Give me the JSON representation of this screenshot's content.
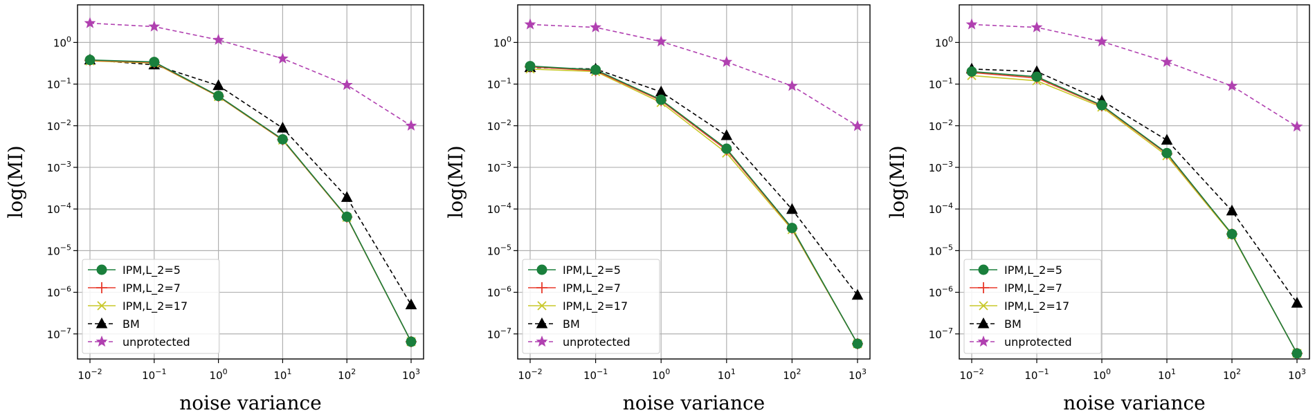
{
  "chart_data": [
    {
      "type": "line",
      "xlabel": "noise variance",
      "ylabel": "log(MI)",
      "xscale": "log",
      "yscale": "log",
      "x": [
        0.01,
        0.1,
        1,
        10,
        100,
        1000
      ],
      "xticks": [
        "10^-2",
        "10^-1",
        "10^0",
        "10^1",
        "10^2",
        "10^3"
      ],
      "yticks": [
        "10^-7",
        "10^-6",
        "10^-5",
        "10^-4",
        "10^-3",
        "10^-2",
        "10^-1",
        "10^0"
      ],
      "ylim": [
        2.5e-08,
        8
      ],
      "grid": true,
      "legend": "lower-left",
      "series": [
        {
          "name": "IPM,L_2=5",
          "color": "#1a7f3c",
          "marker": "circle",
          "values": [
            0.38,
            0.34,
            0.052,
            0.0047,
            6.5e-05,
            6.5e-08
          ]
        },
        {
          "name": "IPM,L_2=7",
          "color": "#e8382a",
          "marker": "plus",
          "values": [
            0.37,
            0.33,
            0.051,
            0.0046,
            6.4e-05,
            6.5e-08
          ]
        },
        {
          "name": "IPM,L_2=17",
          "color": "#c8c82a",
          "marker": "x",
          "values": [
            0.36,
            0.32,
            0.05,
            0.0045,
            6.3e-05,
            6.5e-08
          ]
        },
        {
          "name": "BM",
          "color": "#000000",
          "marker": "triangle",
          "values": [
            0.38,
            0.29,
            0.092,
            0.0088,
            0.00019,
            5e-07
          ]
        },
        {
          "name": "unprotected",
          "color": "#b040b0",
          "marker": "star",
          "values": [
            2.9,
            2.4,
            1.15,
            0.41,
            0.095,
            0.01
          ]
        }
      ]
    },
    {
      "type": "line",
      "xlabel": "noise variance",
      "ylabel": "log(MI)",
      "xscale": "log",
      "yscale": "log",
      "x": [
        0.01,
        0.1,
        1,
        10,
        100,
        1000
      ],
      "xticks": [
        "10^-2",
        "10^-1",
        "10^0",
        "10^1",
        "10^2",
        "10^3"
      ],
      "yticks": [
        "10^-7",
        "10^-6",
        "10^-5",
        "10^-4",
        "10^-3",
        "10^-2",
        "10^-1",
        "10^0"
      ],
      "ylim": [
        2.5e-08,
        8
      ],
      "grid": true,
      "legend": "lower-left",
      "series": [
        {
          "name": "IPM,L_2=5",
          "color": "#1a7f3c",
          "marker": "circle",
          "values": [
            0.27,
            0.22,
            0.042,
            0.0028,
            3.5e-05,
            5.8e-08
          ]
        },
        {
          "name": "IPM,L_2=7",
          "color": "#e8382a",
          "marker": "plus",
          "values": [
            0.26,
            0.21,
            0.04,
            0.0026,
            3.4e-05,
            5.8e-08
          ]
        },
        {
          "name": "IPM,L_2=17",
          "color": "#c8c82a",
          "marker": "x",
          "values": [
            0.23,
            0.2,
            0.036,
            0.0022,
            3.2e-05,
            5.8e-08
          ]
        },
        {
          "name": "BM",
          "color": "#000000",
          "marker": "triangle",
          "values": [
            0.25,
            0.23,
            0.065,
            0.0058,
            9.8e-05,
            8.5e-07
          ]
        },
        {
          "name": "unprotected",
          "color": "#b040b0",
          "marker": "star",
          "values": [
            2.7,
            2.3,
            1.05,
            0.34,
            0.09,
            0.0098
          ]
        }
      ]
    },
    {
      "type": "line",
      "xlabel": "noise variance",
      "ylabel": "log(MI)",
      "xscale": "log",
      "yscale": "log",
      "x": [
        0.01,
        0.1,
        1,
        10,
        100,
        1000
      ],
      "xticks": [
        "10^-2",
        "10^-1",
        "10^0",
        "10^1",
        "10^2",
        "10^3"
      ],
      "yticks": [
        "10^-7",
        "10^-6",
        "10^-5",
        "10^-4",
        "10^-3",
        "10^-2",
        "10^-1",
        "10^0"
      ],
      "ylim": [
        2.5e-08,
        8
      ],
      "grid": true,
      "legend": "lower-left",
      "series": [
        {
          "name": "IPM,L_2=5",
          "color": "#1a7f3c",
          "marker": "circle",
          "values": [
            0.2,
            0.15,
            0.031,
            0.0022,
            2.5e-05,
            3.4e-08
          ]
        },
        {
          "name": "IPM,L_2=7",
          "color": "#e8382a",
          "marker": "plus",
          "values": [
            0.19,
            0.14,
            0.03,
            0.0021,
            2.5e-05,
            3.4e-08
          ]
        },
        {
          "name": "IPM,L_2=17",
          "color": "#c8c82a",
          "marker": "x",
          "values": [
            0.16,
            0.12,
            0.028,
            0.0019,
            2.4e-05,
            3.4e-08
          ]
        },
        {
          "name": "BM",
          "color": "#000000",
          "marker": "triangle",
          "values": [
            0.23,
            0.2,
            0.04,
            0.0045,
            9e-05,
            5.5e-07
          ]
        },
        {
          "name": "unprotected",
          "color": "#b040b0",
          "marker": "star",
          "values": [
            2.7,
            2.3,
            1.05,
            0.34,
            0.09,
            0.0095
          ]
        }
      ]
    }
  ]
}
